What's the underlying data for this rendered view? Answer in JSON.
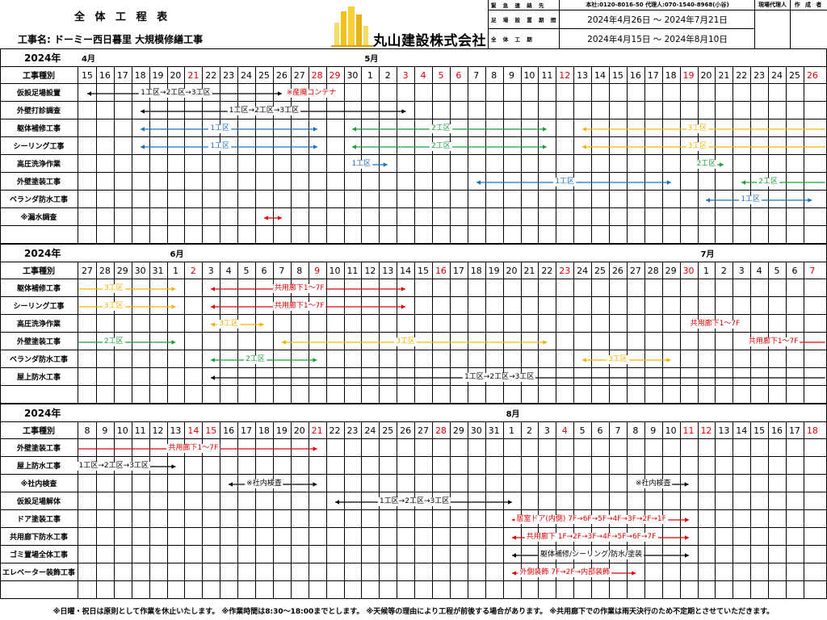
{
  "header": {
    "title": "全 体 工 程 表",
    "project_name": "工事名: ドーミー西日暮里 大規模修繕工事",
    "company": "丸山建設株式会社",
    "emergency_label": "緊 急 連 絡 先",
    "emergency_value": "本社:0120-8016-50 代理人:070-1540-8968(小谷)",
    "scaffold_label": "足 場 設 置 期 間",
    "scaffold_value": "2024年4月26日 ～ 2024年7月21日",
    "overall_label": "全 体 工 期",
    "overall_value": "2024年4月15日 ～ 2024年8月10日",
    "role1": "現場代理人",
    "role2": "作 成 者"
  },
  "col_header": "工事種別",
  "sections": [
    {
      "year": "2024年",
      "months": [
        {
          "label": "4月",
          "col": 0
        },
        {
          "label": "5月",
          "col": 16
        }
      ],
      "days": [
        {
          "d": "15",
          "r": false
        },
        {
          "d": "16",
          "r": false
        },
        {
          "d": "17",
          "r": false
        },
        {
          "d": "18",
          "r": false
        },
        {
          "d": "19",
          "r": false
        },
        {
          "d": "20",
          "r": false
        },
        {
          "d": "21",
          "r": true
        },
        {
          "d": "22",
          "r": false
        },
        {
          "d": "23",
          "r": false
        },
        {
          "d": "24",
          "r": false
        },
        {
          "d": "25",
          "r": false
        },
        {
          "d": "26",
          "r": false
        },
        {
          "d": "27",
          "r": false
        },
        {
          "d": "28",
          "r": true
        },
        {
          "d": "29",
          "r": true
        },
        {
          "d": "30",
          "r": false
        },
        {
          "d": "1",
          "r": false
        },
        {
          "d": "2",
          "r": false
        },
        {
          "d": "3",
          "r": true
        },
        {
          "d": "4",
          "r": true
        },
        {
          "d": "5",
          "r": true
        },
        {
          "d": "6",
          "r": true
        },
        {
          "d": "7",
          "r": false
        },
        {
          "d": "8",
          "r": false
        },
        {
          "d": "9",
          "r": false
        },
        {
          "d": "10",
          "r": false
        },
        {
          "d": "11",
          "r": false
        },
        {
          "d": "12",
          "r": true
        },
        {
          "d": "13",
          "r": false
        },
        {
          "d": "14",
          "r": false
        },
        {
          "d": "15",
          "r": false
        },
        {
          "d": "16",
          "r": false
        },
        {
          "d": "17",
          "r": false
        },
        {
          "d": "18",
          "r": false
        },
        {
          "d": "19",
          "r": true
        },
        {
          "d": "20",
          "r": false
        },
        {
          "d": "21",
          "r": false
        },
        {
          "d": "22",
          "r": false
        },
        {
          "d": "23",
          "r": false
        },
        {
          "d": "24",
          "r": false
        },
        {
          "d": "25",
          "r": false
        },
        {
          "d": "26",
          "r": true
        }
      ],
      "rows": [
        {
          "label": "仮設足場設置",
          "bars": [
            {
              "from": 0,
              "to": 11,
              "color": "#000000",
              "text": "1工区→2工区→3工区"
            },
            {
              "from": 11,
              "to": 11,
              "color": "#e00000",
              "text": "※産廃コンテナ",
              "textOnly": true,
              "at": 12.5
            }
          ]
        },
        {
          "label": "外壁打診調査",
          "bars": [
            {
              "from": 3,
              "to": 18,
              "color": "#000000",
              "text": "1工区→2工区→3工区"
            }
          ]
        },
        {
          "label": "躯体補修工事",
          "bars": [
            {
              "from": 3,
              "to": 13,
              "color": "#1f6fbf",
              "text": "1工区"
            },
            {
              "from": 15,
              "to": 26,
              "color": "#1a9e3c",
              "text": "2工区"
            },
            {
              "from": 28,
              "to": 42,
              "color": "#f0b400",
              "text": "3工区",
              "textAt": 35.5
            }
          ]
        },
        {
          "label": "シーリング工事",
          "bars": [
            {
              "from": 3,
              "to": 13,
              "color": "#1f6fbf",
              "text": "1工区"
            },
            {
              "from": 15,
              "to": 26,
              "color": "#1a9e3c",
              "text": "2工区"
            },
            {
              "from": 28,
              "to": 42,
              "color": "#f0b400",
              "text": "3工区",
              "textAt": 35.5
            }
          ]
        },
        {
          "label": "高圧洗浄作業",
          "bars": [
            {
              "from": 15,
              "to": 17,
              "color": "#1f6fbf",
              "text": "1工区"
            },
            {
              "from": 35,
              "to": 36,
              "color": "#1a9e3c",
              "text": "2工区"
            }
          ]
        },
        {
          "label": "外壁塗装工事",
          "bars": [
            {
              "from": 22,
              "to": 33,
              "color": "#1f6fbf",
              "text": "1工区"
            },
            {
              "from": 37,
              "to": 42,
              "color": "#1a9e3c",
              "text": "2工区",
              "textAt": 39.5
            }
          ]
        },
        {
          "label": "ベランダ防水工事",
          "bars": [
            {
              "from": 35,
              "to": 41,
              "color": "#1f6fbf",
              "text": "1工区"
            }
          ]
        },
        {
          "label": "※漏水調査",
          "bars": [
            {
              "from": 10,
              "to": 11,
              "color": "#e00000",
              "text": ""
            }
          ]
        },
        {
          "label": "",
          "bars": []
        }
      ]
    },
    {
      "year": "2024年",
      "months": [
        {
          "label": "6月",
          "col": 5
        },
        {
          "label": "7月",
          "col": 35
        }
      ],
      "days": [
        {
          "d": "27",
          "r": false
        },
        {
          "d": "28",
          "r": false
        },
        {
          "d": "29",
          "r": false
        },
        {
          "d": "30",
          "r": false
        },
        {
          "d": "31",
          "r": false
        },
        {
          "d": "1",
          "r": false
        },
        {
          "d": "2",
          "r": true
        },
        {
          "d": "3",
          "r": false
        },
        {
          "d": "4",
          "r": false
        },
        {
          "d": "5",
          "r": false
        },
        {
          "d": "6",
          "r": false
        },
        {
          "d": "7",
          "r": false
        },
        {
          "d": "8",
          "r": false
        },
        {
          "d": "9",
          "r": true
        },
        {
          "d": "10",
          "r": false
        },
        {
          "d": "11",
          "r": false
        },
        {
          "d": "12",
          "r": false
        },
        {
          "d": "13",
          "r": false
        },
        {
          "d": "14",
          "r": false
        },
        {
          "d": "15",
          "r": false
        },
        {
          "d": "16",
          "r": true
        },
        {
          "d": "17",
          "r": false
        },
        {
          "d": "18",
          "r": false
        },
        {
          "d": "19",
          "r": false
        },
        {
          "d": "20",
          "r": false
        },
        {
          "d": "21",
          "r": false
        },
        {
          "d": "22",
          "r": false
        },
        {
          "d": "23",
          "r": true
        },
        {
          "d": "24",
          "r": false
        },
        {
          "d": "25",
          "r": false
        },
        {
          "d": "26",
          "r": false
        },
        {
          "d": "27",
          "r": false
        },
        {
          "d": "28",
          "r": false
        },
        {
          "d": "29",
          "r": false
        },
        {
          "d": "30",
          "r": true
        },
        {
          "d": "1",
          "r": false
        },
        {
          "d": "2",
          "r": false
        },
        {
          "d": "3",
          "r": false
        },
        {
          "d": "4",
          "r": false
        },
        {
          "d": "5",
          "r": false
        },
        {
          "d": "6",
          "r": false
        },
        {
          "d": "7",
          "r": true
        }
      ],
      "rows": [
        {
          "label": "躯体補修工事",
          "bars": [
            {
              "from": -1,
              "to": 5,
              "color": "#f0b400",
              "text": "3工区"
            },
            {
              "from": 7,
              "to": 18,
              "color": "#e00000",
              "text": "共用廊下1～7F"
            }
          ]
        },
        {
          "label": "シーリング工事",
          "bars": [
            {
              "from": -1,
              "to": 5,
              "color": "#f0b400",
              "text": "3工区"
            },
            {
              "from": 7,
              "to": 18,
              "color": "#e00000",
              "text": "共用廊下1～7F"
            }
          ]
        },
        {
          "label": "高圧洗浄作業",
          "bars": [
            {
              "from": 7,
              "to": 10,
              "color": "#f0b400",
              "text": "3工区"
            },
            {
              "from": 35,
              "to": 37,
              "color": "#e00000",
              "text": "共用廊下1～7F"
            }
          ]
        },
        {
          "label": "外壁塗装工事",
          "bars": [
            {
              "from": -1,
              "to": 5,
              "color": "#1a9e3c",
              "text": "2工区"
            },
            {
              "from": 11,
              "to": 26,
              "color": "#f0b400",
              "text": "3工区"
            },
            {
              "from": 38,
              "to": 42,
              "color": "#e00000",
              "text": "共用廊下1～7F",
              "textAt": 39.8
            }
          ]
        },
        {
          "label": "ベランダ防水工事",
          "bars": [
            {
              "from": 7,
              "to": 13,
              "color": "#1a9e3c",
              "text": "2工区"
            },
            {
              "from": 28,
              "to": 33,
              "color": "#f0b400",
              "text": "3工区"
            }
          ]
        },
        {
          "label": "屋上防水工事",
          "bars": [
            {
              "from": 7,
              "to": 42,
              "color": "#000000",
              "text": "1工区→2工区→3工区",
              "textAt": 24.3
            }
          ]
        },
        {
          "label": "",
          "bars": []
        }
      ]
    },
    {
      "year": "2024年",
      "months": [
        {
          "label": "8月",
          "col": 24
        }
      ],
      "days": [
        {
          "d": "8",
          "r": false
        },
        {
          "d": "9",
          "r": false
        },
        {
          "d": "10",
          "r": false
        },
        {
          "d": "11",
          "r": false
        },
        {
          "d": "12",
          "r": false
        },
        {
          "d": "13",
          "r": false
        },
        {
          "d": "14",
          "r": true
        },
        {
          "d": "15",
          "r": true
        },
        {
          "d": "16",
          "r": false
        },
        {
          "d": "17",
          "r": false
        },
        {
          "d": "18",
          "r": false
        },
        {
          "d": "19",
          "r": false
        },
        {
          "d": "20",
          "r": false
        },
        {
          "d": "21",
          "r": true
        },
        {
          "d": "22",
          "r": false
        },
        {
          "d": "23",
          "r": false
        },
        {
          "d": "24",
          "r": false
        },
        {
          "d": "25",
          "r": false
        },
        {
          "d": "26",
          "r": false
        },
        {
          "d": "27",
          "r": false
        },
        {
          "d": "28",
          "r": true
        },
        {
          "d": "29",
          "r": false
        },
        {
          "d": "30",
          "r": false
        },
        {
          "d": "31",
          "r": false
        },
        {
          "d": "1",
          "r": false
        },
        {
          "d": "2",
          "r": false
        },
        {
          "d": "3",
          "r": false
        },
        {
          "d": "4",
          "r": true
        },
        {
          "d": "5",
          "r": false
        },
        {
          "d": "6",
          "r": false
        },
        {
          "d": "7",
          "r": false
        },
        {
          "d": "8",
          "r": false
        },
        {
          "d": "9",
          "r": false
        },
        {
          "d": "10",
          "r": false
        },
        {
          "d": "11",
          "r": true
        },
        {
          "d": "12",
          "r": true
        },
        {
          "d": "13",
          "r": false
        },
        {
          "d": "14",
          "r": false
        },
        {
          "d": "15",
          "r": false
        },
        {
          "d": "16",
          "r": false
        },
        {
          "d": "17",
          "r": false
        },
        {
          "d": "18",
          "r": true
        }
      ],
      "rows": [
        {
          "label": "外壁塗装工事",
          "bars": [
            {
              "from": -1,
              "to": 13,
              "color": "#e00000",
              "text": "共用廊下1～7F",
              "textAt": 7
            }
          ]
        },
        {
          "label": "屋上防水工事",
          "bars": [
            {
              "from": -1,
              "to": 5,
              "color": "#000000",
              "text": "1工区→2工区→3工区"
            }
          ]
        },
        {
          "label": "※社内検査",
          "bars": [
            {
              "from": 8,
              "to": 13,
              "color": "#000000",
              "text": "※社内検査"
            },
            {
              "from": 31,
              "to": 34,
              "color": "#000000",
              "text": "※社内検査"
            }
          ]
        },
        {
          "label": "仮設足場解体",
          "bars": [
            {
              "from": 14,
              "to": 24,
              "color": "#000000",
              "text": "1工区→2工区→3工区"
            }
          ]
        },
        {
          "label": "ドア塗装工事",
          "bars": [
            {
              "from": 24,
              "to": 34,
              "color": "#e00000",
              "text": "居室ドア(内側) 7F→6F→5F→4F→3F→2F→1F"
            }
          ]
        },
        {
          "label": "共用廊下防水工事",
          "bars": [
            {
              "from": 24,
              "to": 34,
              "color": "#e00000",
              "text": "共用廊下 1F→2F→3F→4F→5F→6F→7F"
            }
          ]
        },
        {
          "label": "ゴミ置場全体工事",
          "bars": [
            {
              "from": 24,
              "to": 34,
              "color": "#000000",
              "text": "躯体補修/シーリング/防水/塗装"
            }
          ]
        },
        {
          "label": "エレベーター装飾工事",
          "bars": [
            {
              "from": 24,
              "to": 31,
              "color": "#e00000",
              "text": "外側装飾 7F→2F→内部装飾"
            }
          ]
        },
        {
          "label": "",
          "bars": []
        }
      ]
    }
  ],
  "footer": "※日曜・祝日は原則として作業を休止いたします。 ※作業時間は8:30～18:00までとします。 ※天候等の理由により工程が前後する場合があります。 ※共用廊下での作業は雨天決行のため不定期とさせていただきます。"
}
